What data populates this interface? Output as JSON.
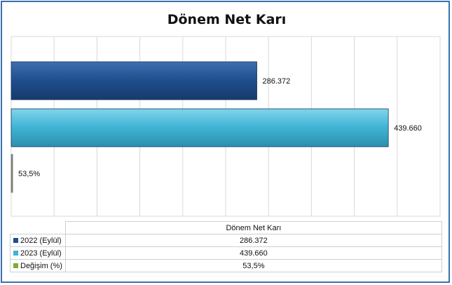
{
  "chart_data": {
    "type": "bar",
    "orientation": "horizontal",
    "title": "Dönem Net Karı",
    "category": "Dönem Net Karı",
    "grid": true,
    "xlim": [
      0,
      500000
    ],
    "series": [
      {
        "name": "2022 (Eylül)",
        "value": 286372,
        "label": "286.372",
        "color": "#1f4e8c"
      },
      {
        "name": "2023 (Eylül)",
        "value": 439660,
        "label": "439.660",
        "color": "#3fb3d4"
      },
      {
        "name": "Değişim (%)",
        "value": 53.5,
        "label": "53,5%",
        "color": "#7fae2e"
      }
    ]
  }
}
